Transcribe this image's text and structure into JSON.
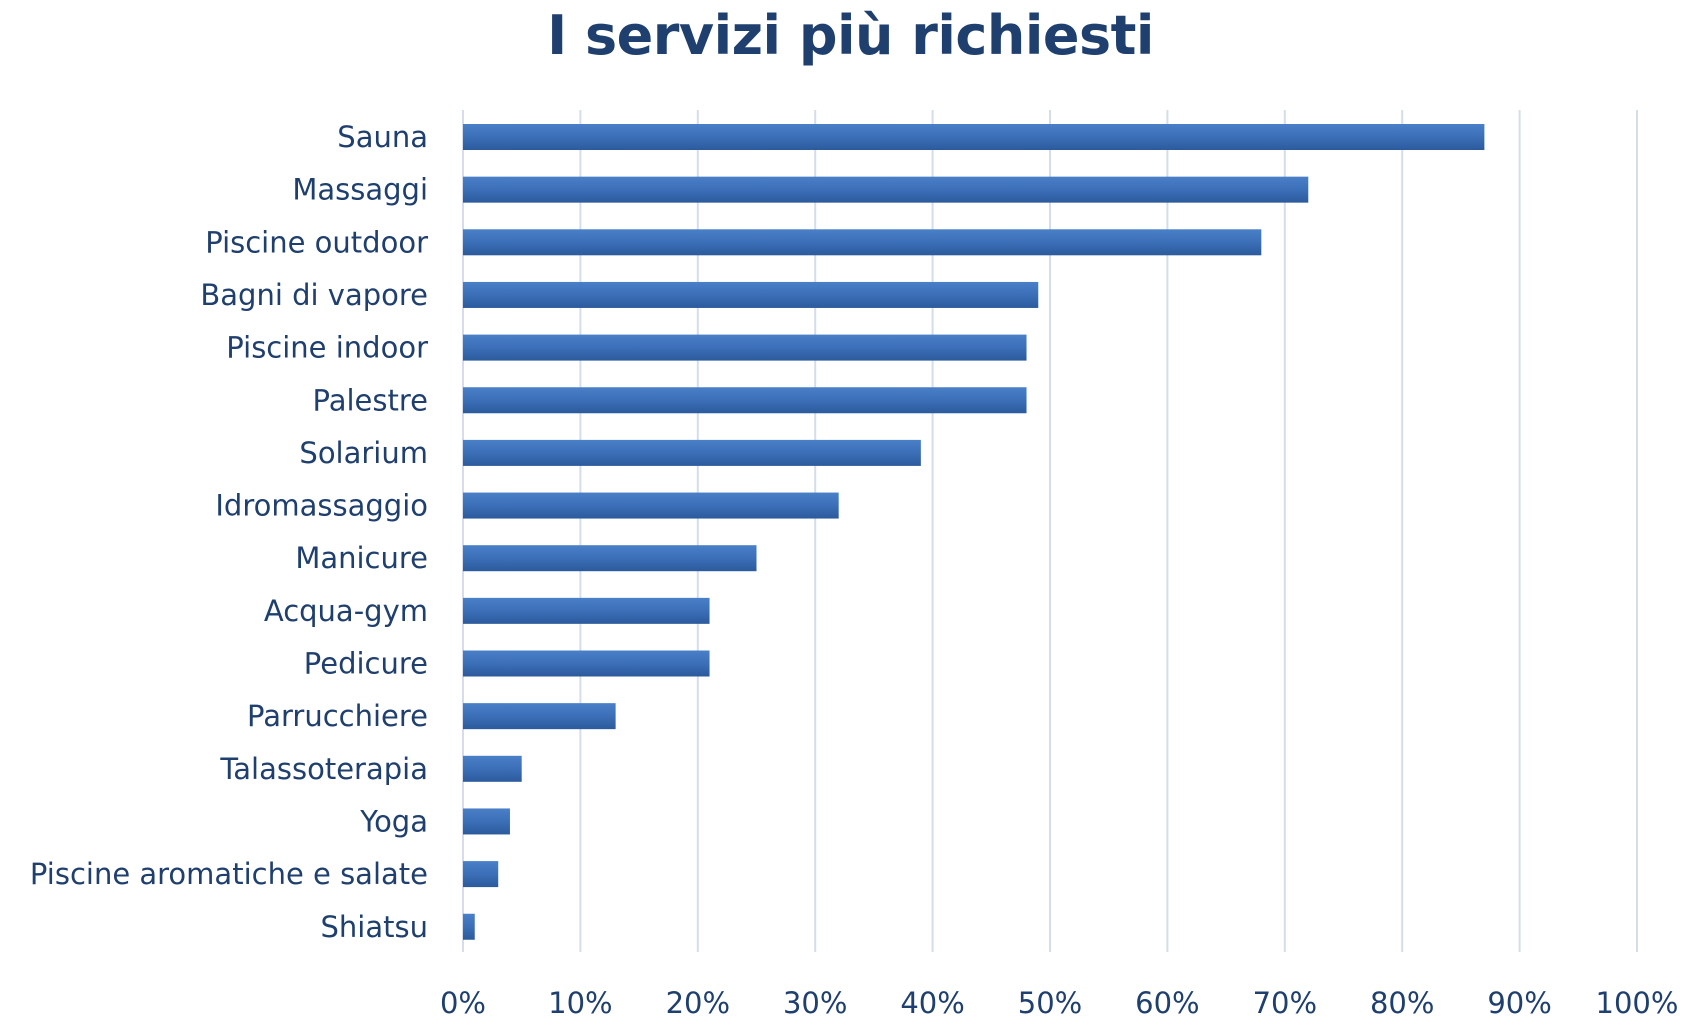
{
  "chart_data": {
    "type": "bar",
    "orientation": "horizontal",
    "title": "I servizi più richiesti",
    "categories": [
      "Sauna",
      "Massaggi",
      "Piscine outdoor",
      "Bagni di vapore",
      "Piscine indoor",
      "Palestre",
      "Solarium",
      "Idromassaggio",
      "Manicure",
      "Acqua-gym",
      "Pedicure",
      "Parrucchiere",
      "Talassoterapia",
      "Yoga",
      "Piscine aromatiche e salate",
      "Shiatsu"
    ],
    "values": [
      87,
      72,
      68,
      49,
      48,
      48,
      39,
      32,
      25,
      21,
      21,
      13,
      5,
      4,
      3,
      1
    ],
    "xlim": [
      0,
      100
    ],
    "xticks": [
      0,
      10,
      20,
      30,
      40,
      50,
      60,
      70,
      80,
      90,
      100
    ],
    "xtick_labels": [
      "0%",
      "10%",
      "20%",
      "30%",
      "40%",
      "50%",
      "60%",
      "70%",
      "80%",
      "90%",
      "100%"
    ],
    "xlabel": "",
    "ylabel": "",
    "grid": "vertical",
    "legend": "none",
    "colors": {
      "bar": "#3a6db5",
      "text": "#1f3f6e",
      "grid": "#d3deea"
    }
  }
}
